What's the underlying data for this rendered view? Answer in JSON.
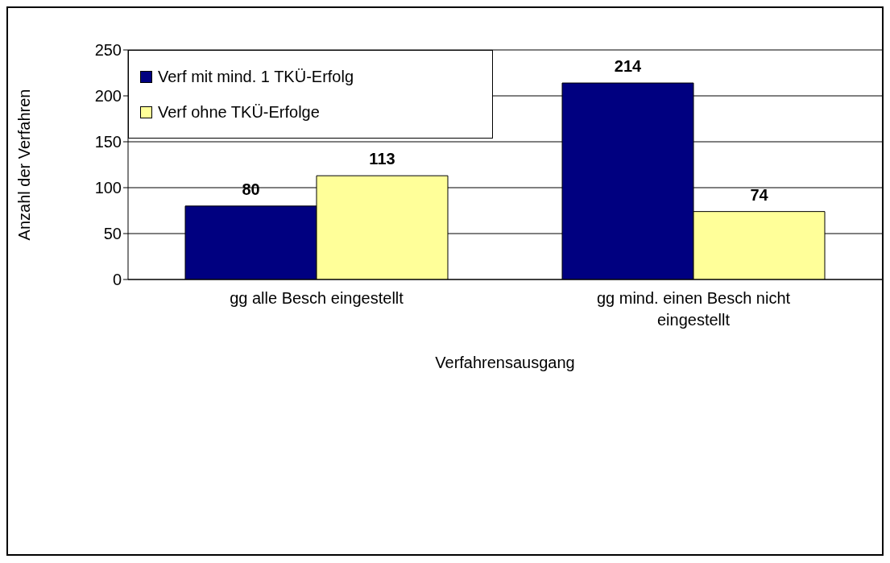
{
  "chart_data": {
    "type": "bar",
    "xlabel": "Verfahrensausgang",
    "ylabel": "Anzahl der Verfahren",
    "categories": [
      "gg alle Besch eingestellt",
      "gg mind. einen Besch nicht eingestellt"
    ],
    "series": [
      {
        "name": "Verf mit mind. 1 TKÜ-Erfolg",
        "color": "#000080",
        "values": [
          80,
          214
        ]
      },
      {
        "name": "Verf ohne TKÜ-Erfolge",
        "color": "#ffff99",
        "values": [
          113,
          74
        ]
      }
    ],
    "ylim": [
      0,
      250
    ],
    "yticks": [
      0,
      50,
      100,
      150,
      200,
      250
    ],
    "grid": "y",
    "legend": "top left",
    "data_labels": true
  }
}
